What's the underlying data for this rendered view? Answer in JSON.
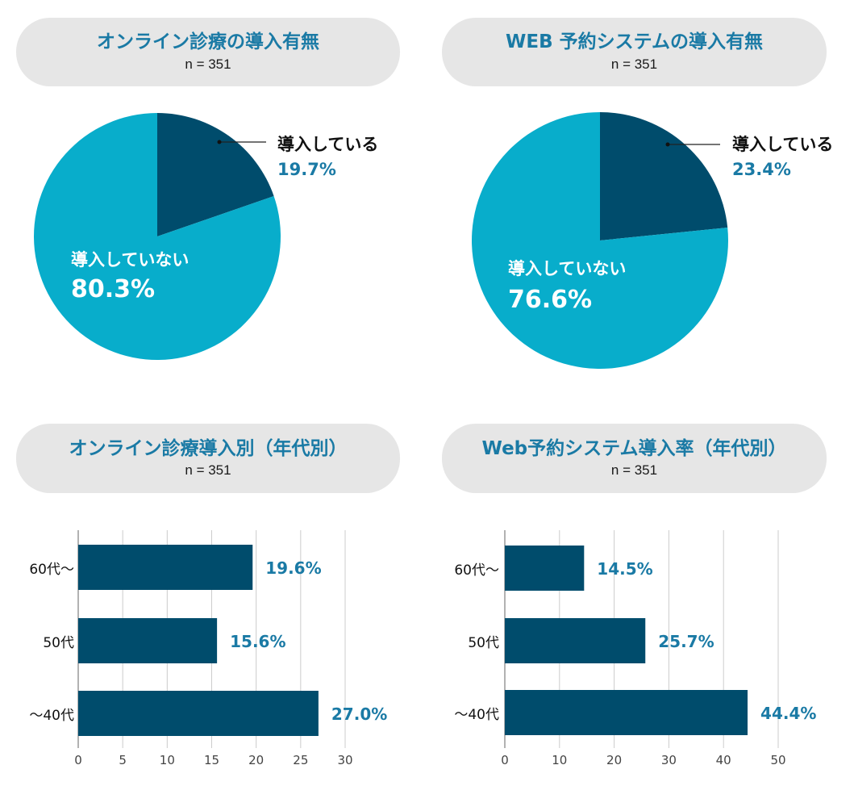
{
  "colors": {
    "dark": "#004c6c",
    "light": "#08adcb",
    "accent_text": "#1a7aa5",
    "axis": "#999999",
    "grid": "#cccccc"
  },
  "headers": [
    {
      "title": "オンライン診療の導入有無",
      "n": "n = 351"
    },
    {
      "title": "WEB 予約システムの導入有無",
      "n": "n = 351"
    },
    {
      "title": "オンライン診療導入別（年代別）",
      "n": "n = 351"
    },
    {
      "title": "Web予約システム導入率（年代別）",
      "n": "n = 351"
    }
  ],
  "chart_data": [
    {
      "type": "pie",
      "title": "オンライン診療の導入有無",
      "slices": [
        {
          "label": "導入している",
          "value": 19.7,
          "display": "19.7%"
        },
        {
          "label": "導入していない",
          "value": 80.3,
          "display": "80.3%"
        }
      ]
    },
    {
      "type": "pie",
      "title": "WEB 予約システムの導入有無",
      "slices": [
        {
          "label": "導入している",
          "value": 23.4,
          "display": "23.4%"
        },
        {
          "label": "導入していない",
          "value": 76.6,
          "display": "76.6%"
        }
      ]
    },
    {
      "type": "bar",
      "orientation": "horizontal",
      "title": "オンライン診療導入別（年代別）",
      "categories": [
        "60代〜",
        "50代",
        "〜40代"
      ],
      "values": [
        19.6,
        15.6,
        27.0
      ],
      "labels": [
        "19.6%",
        "15.6%",
        "27.0%"
      ],
      "xlim": [
        0,
        30
      ],
      "xticks": [
        0,
        5,
        10,
        15,
        20,
        25,
        30
      ],
      "grid": true
    },
    {
      "type": "bar",
      "orientation": "horizontal",
      "title": "Web予約システム導入率（年代別）",
      "categories": [
        "60代〜",
        "50代",
        "〜40代"
      ],
      "values": [
        14.5,
        25.7,
        44.4
      ],
      "labels": [
        "14.5%",
        "25.7%",
        "44.4%"
      ],
      "xlim": [
        0,
        50
      ],
      "xticks": [
        0,
        10,
        20,
        30,
        40,
        50
      ],
      "grid": true
    }
  ]
}
